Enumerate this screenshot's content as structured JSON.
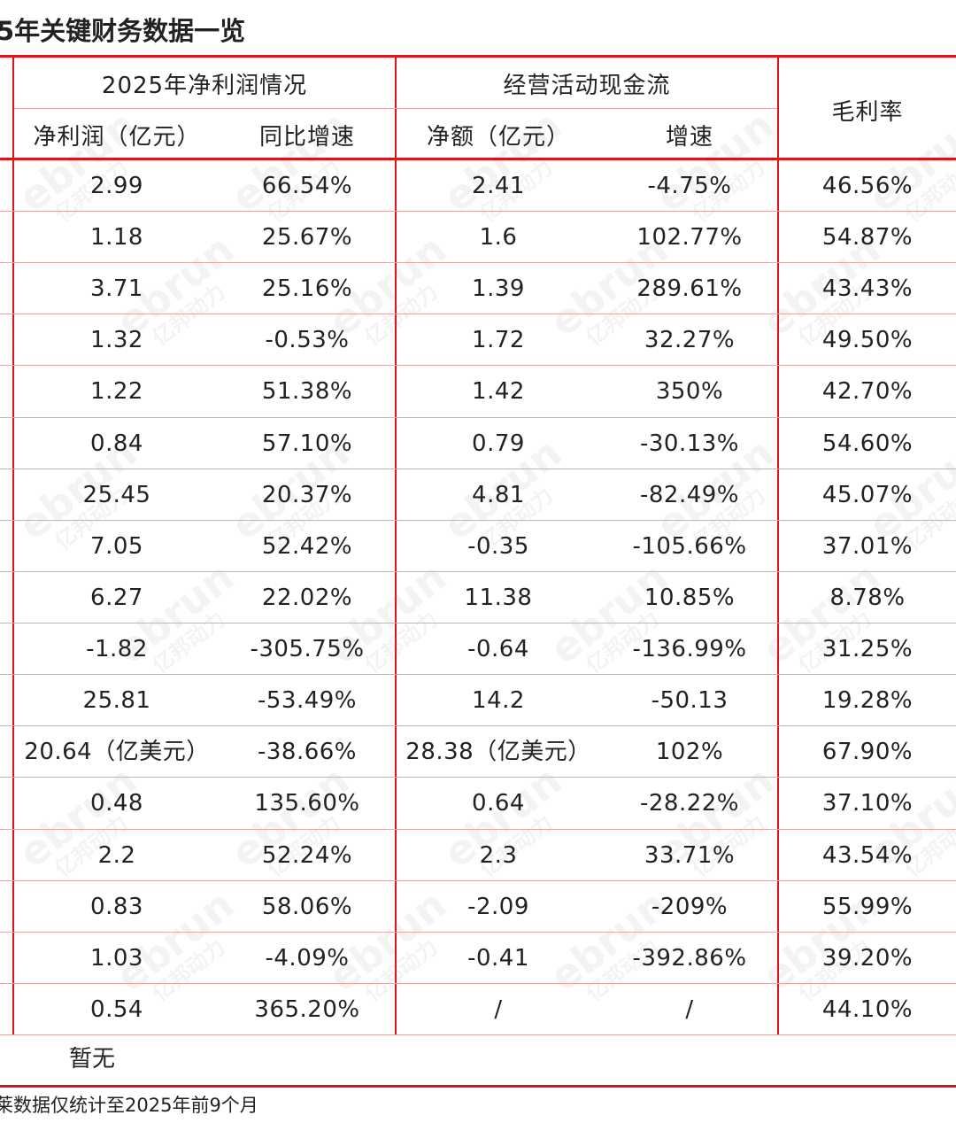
{
  "title": "5年关键财务数据一览",
  "header": {
    "group_net_profit": "2025年净利润情况",
    "group_cash_flow": "经营活动现金流",
    "gross_margin": "毛利率",
    "net_profit": "净利润（亿元）",
    "yoy_growth": "同比增速",
    "net_amount": "净额（亿元）",
    "growth": "增速"
  },
  "columns": [
    "净利润（亿元）",
    "同比增速",
    "净额（亿元）",
    "增速",
    "毛利率"
  ],
  "rows": [
    [
      "2.99",
      "66.54%",
      "2.41",
      "-4.75%",
      "46.56%"
    ],
    [
      "1.18",
      "25.67%",
      "1.6",
      "102.77%",
      "54.87%"
    ],
    [
      "3.71",
      "25.16%",
      "1.39",
      "289.61%",
      "43.43%"
    ],
    [
      "1.32",
      "-0.53%",
      "1.72",
      "32.27%",
      "49.50%"
    ],
    [
      "1.22",
      "51.38%",
      "1.42",
      "350%",
      "42.70%"
    ],
    [
      "0.84",
      "57.10%",
      "0.79",
      "-30.13%",
      "54.60%"
    ],
    [
      "25.45",
      "20.37%",
      "4.81",
      "-82.49%",
      "45.07%"
    ],
    [
      "7.05",
      "52.42%",
      "-0.35",
      "-105.66%",
      "37.01%"
    ],
    [
      "6.27",
      "22.02%",
      "11.38",
      "10.85%",
      "8.78%"
    ],
    [
      "-1.82",
      "-305.75%",
      "-0.64",
      "-136.99%",
      "31.25%"
    ],
    [
      "25.81",
      "-53.49%",
      "14.2",
      "-50.13",
      "19.28%"
    ],
    [
      "20.64（亿美元）",
      "-38.66%",
      "28.38（亿美元）",
      "102%",
      "67.90%"
    ],
    [
      "0.48",
      "135.60%",
      "0.64",
      "-28.22%",
      "37.10%"
    ],
    [
      "2.2",
      "52.24%",
      "2.3",
      "33.71%",
      "43.54%"
    ],
    [
      "0.83",
      "58.06%",
      "-2.09",
      "-209%",
      "55.99%"
    ],
    [
      "1.03",
      "-4.09%",
      "-0.41",
      "-392.86%",
      "39.20%"
    ],
    [
      "0.54",
      "365.20%",
      "/",
      "/",
      "44.10%"
    ]
  ],
  "pending_row": "暂无",
  "footnote": "莱数据仅统计至2025年前9个月",
  "watermark": {
    "brand": "ebrun",
    "brand_cn": "亿邦动力"
  },
  "colors": {
    "accent_red": "#d9141b",
    "grid_line": "#e7a6a6",
    "text": "#222222"
  }
}
